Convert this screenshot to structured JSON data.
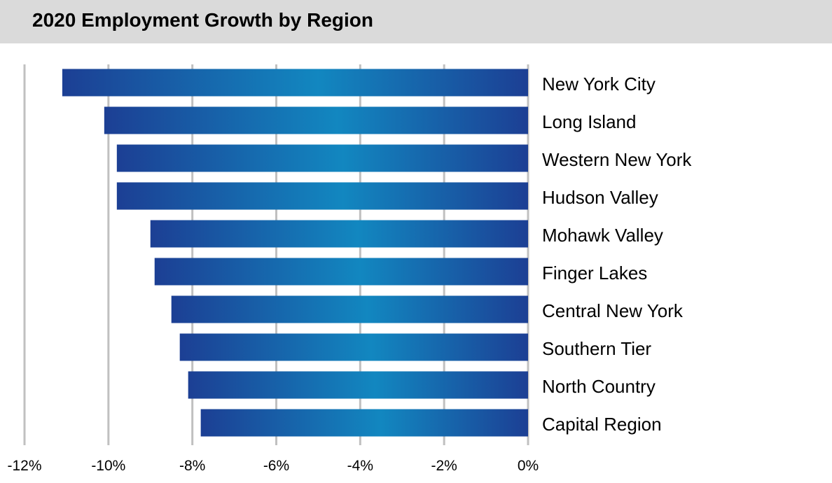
{
  "chart_data": {
    "type": "bar",
    "orientation": "horizontal",
    "title": "2020 Employment Growth by Region",
    "xlabel": "",
    "ylabel": "",
    "xlim": [
      -12,
      0
    ],
    "x_ticks": [
      -12,
      -10,
      -8,
      -6,
      -4,
      -2,
      0
    ],
    "x_tick_labels": [
      "-12%",
      "-10%",
      "-8%",
      "-6%",
      "-4%",
      "-2%",
      "0%"
    ],
    "grid": "vertical",
    "categories": [
      "New York City",
      "Long Island",
      "Western New York",
      "Hudson Valley",
      "Mohawk Valley",
      "Finger Lakes",
      "Central New York",
      "Southern Tier",
      "North Country",
      "Capital Region"
    ],
    "values": [
      -11.1,
      -10.1,
      -9.8,
      -9.8,
      -9.0,
      -8.9,
      -8.5,
      -8.3,
      -8.1,
      -7.8
    ],
    "colors": {
      "bar_dark": "#1c3f94",
      "bar_light": "#1287c0",
      "grid": "#c0c0c0",
      "header_bg": "#dadada"
    }
  }
}
